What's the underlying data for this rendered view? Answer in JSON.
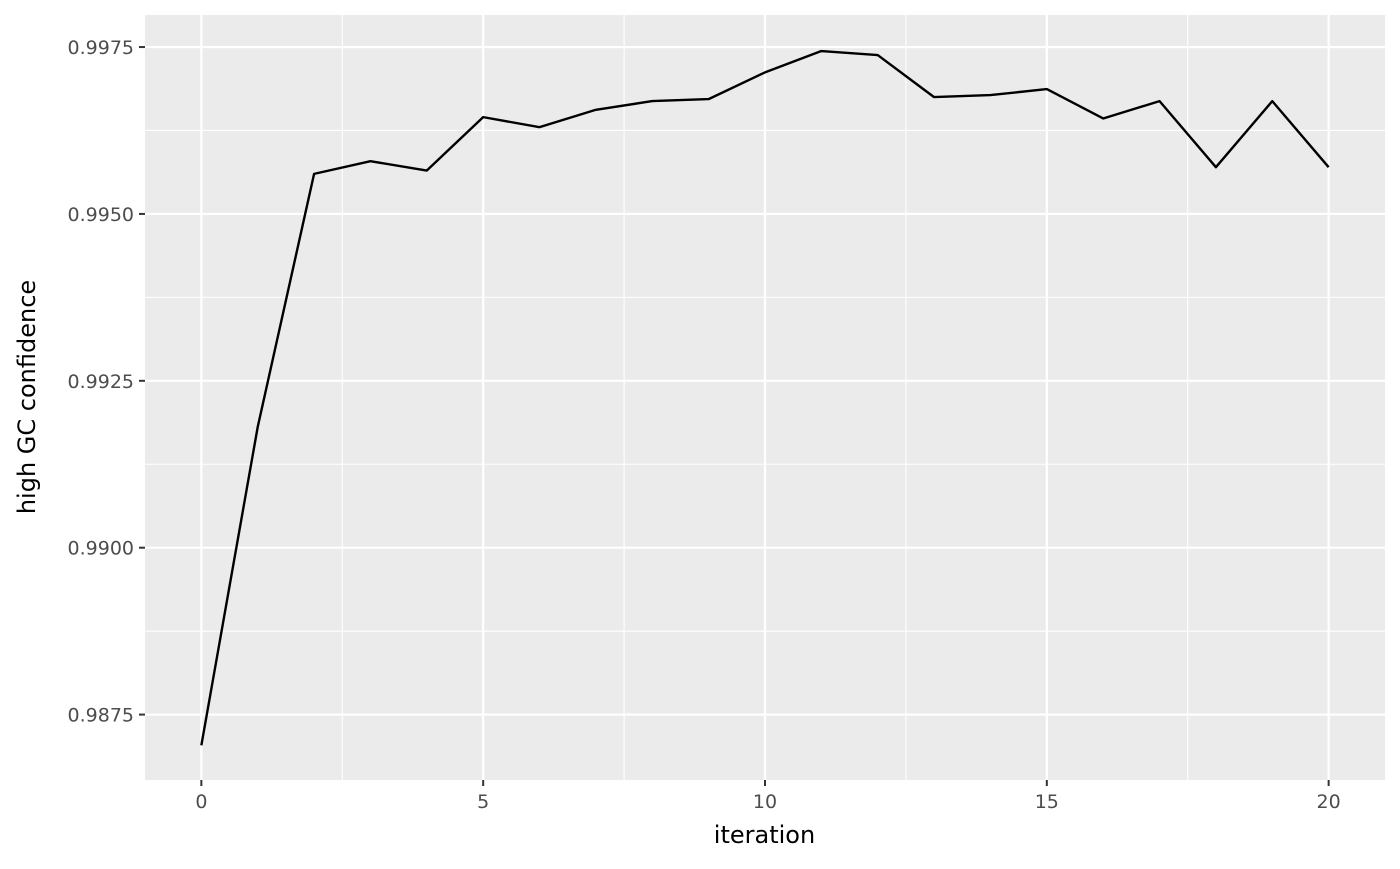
{
  "chart_data": {
    "type": "line",
    "title": "",
    "xlabel": "iteration",
    "ylabel": "high GC confidence",
    "xlim": [
      -1,
      21
    ],
    "ylim": [
      0.98652,
      0.99798
    ],
    "x_ticks": [
      0,
      5,
      10,
      15,
      20
    ],
    "x_tick_labels": [
      "0",
      "5",
      "10",
      "15",
      "20"
    ],
    "y_ticks": [
      0.9875,
      0.99,
      0.9925,
      0.995,
      0.9975
    ],
    "y_tick_labels": [
      "0.9875",
      "0.9900",
      "0.9925",
      "0.9950",
      "0.9975"
    ],
    "grid": true,
    "legend": "none",
    "series": [
      {
        "x": [
          0,
          1,
          2,
          3,
          4,
          5,
          6,
          7,
          8,
          9,
          10,
          11,
          12,
          13,
          14,
          15,
          16,
          17,
          18,
          19,
          20
        ],
        "values": [
          0.98704,
          0.99181,
          0.9956,
          0.99579,
          0.99565,
          0.99645,
          0.9963,
          0.99656,
          0.99669,
          0.99672,
          0.99712,
          0.99744,
          0.99738,
          0.99675,
          0.99678,
          0.99687,
          0.99643,
          0.99669,
          0.9957,
          0.99669,
          0.9957
        ]
      }
    ]
  },
  "colors": {
    "panel_background": "#ebebeb",
    "grid_major": "#ffffff",
    "line": "#000000",
    "tick_label": "#4d4d4d",
    "axis_title": "#000000"
  }
}
